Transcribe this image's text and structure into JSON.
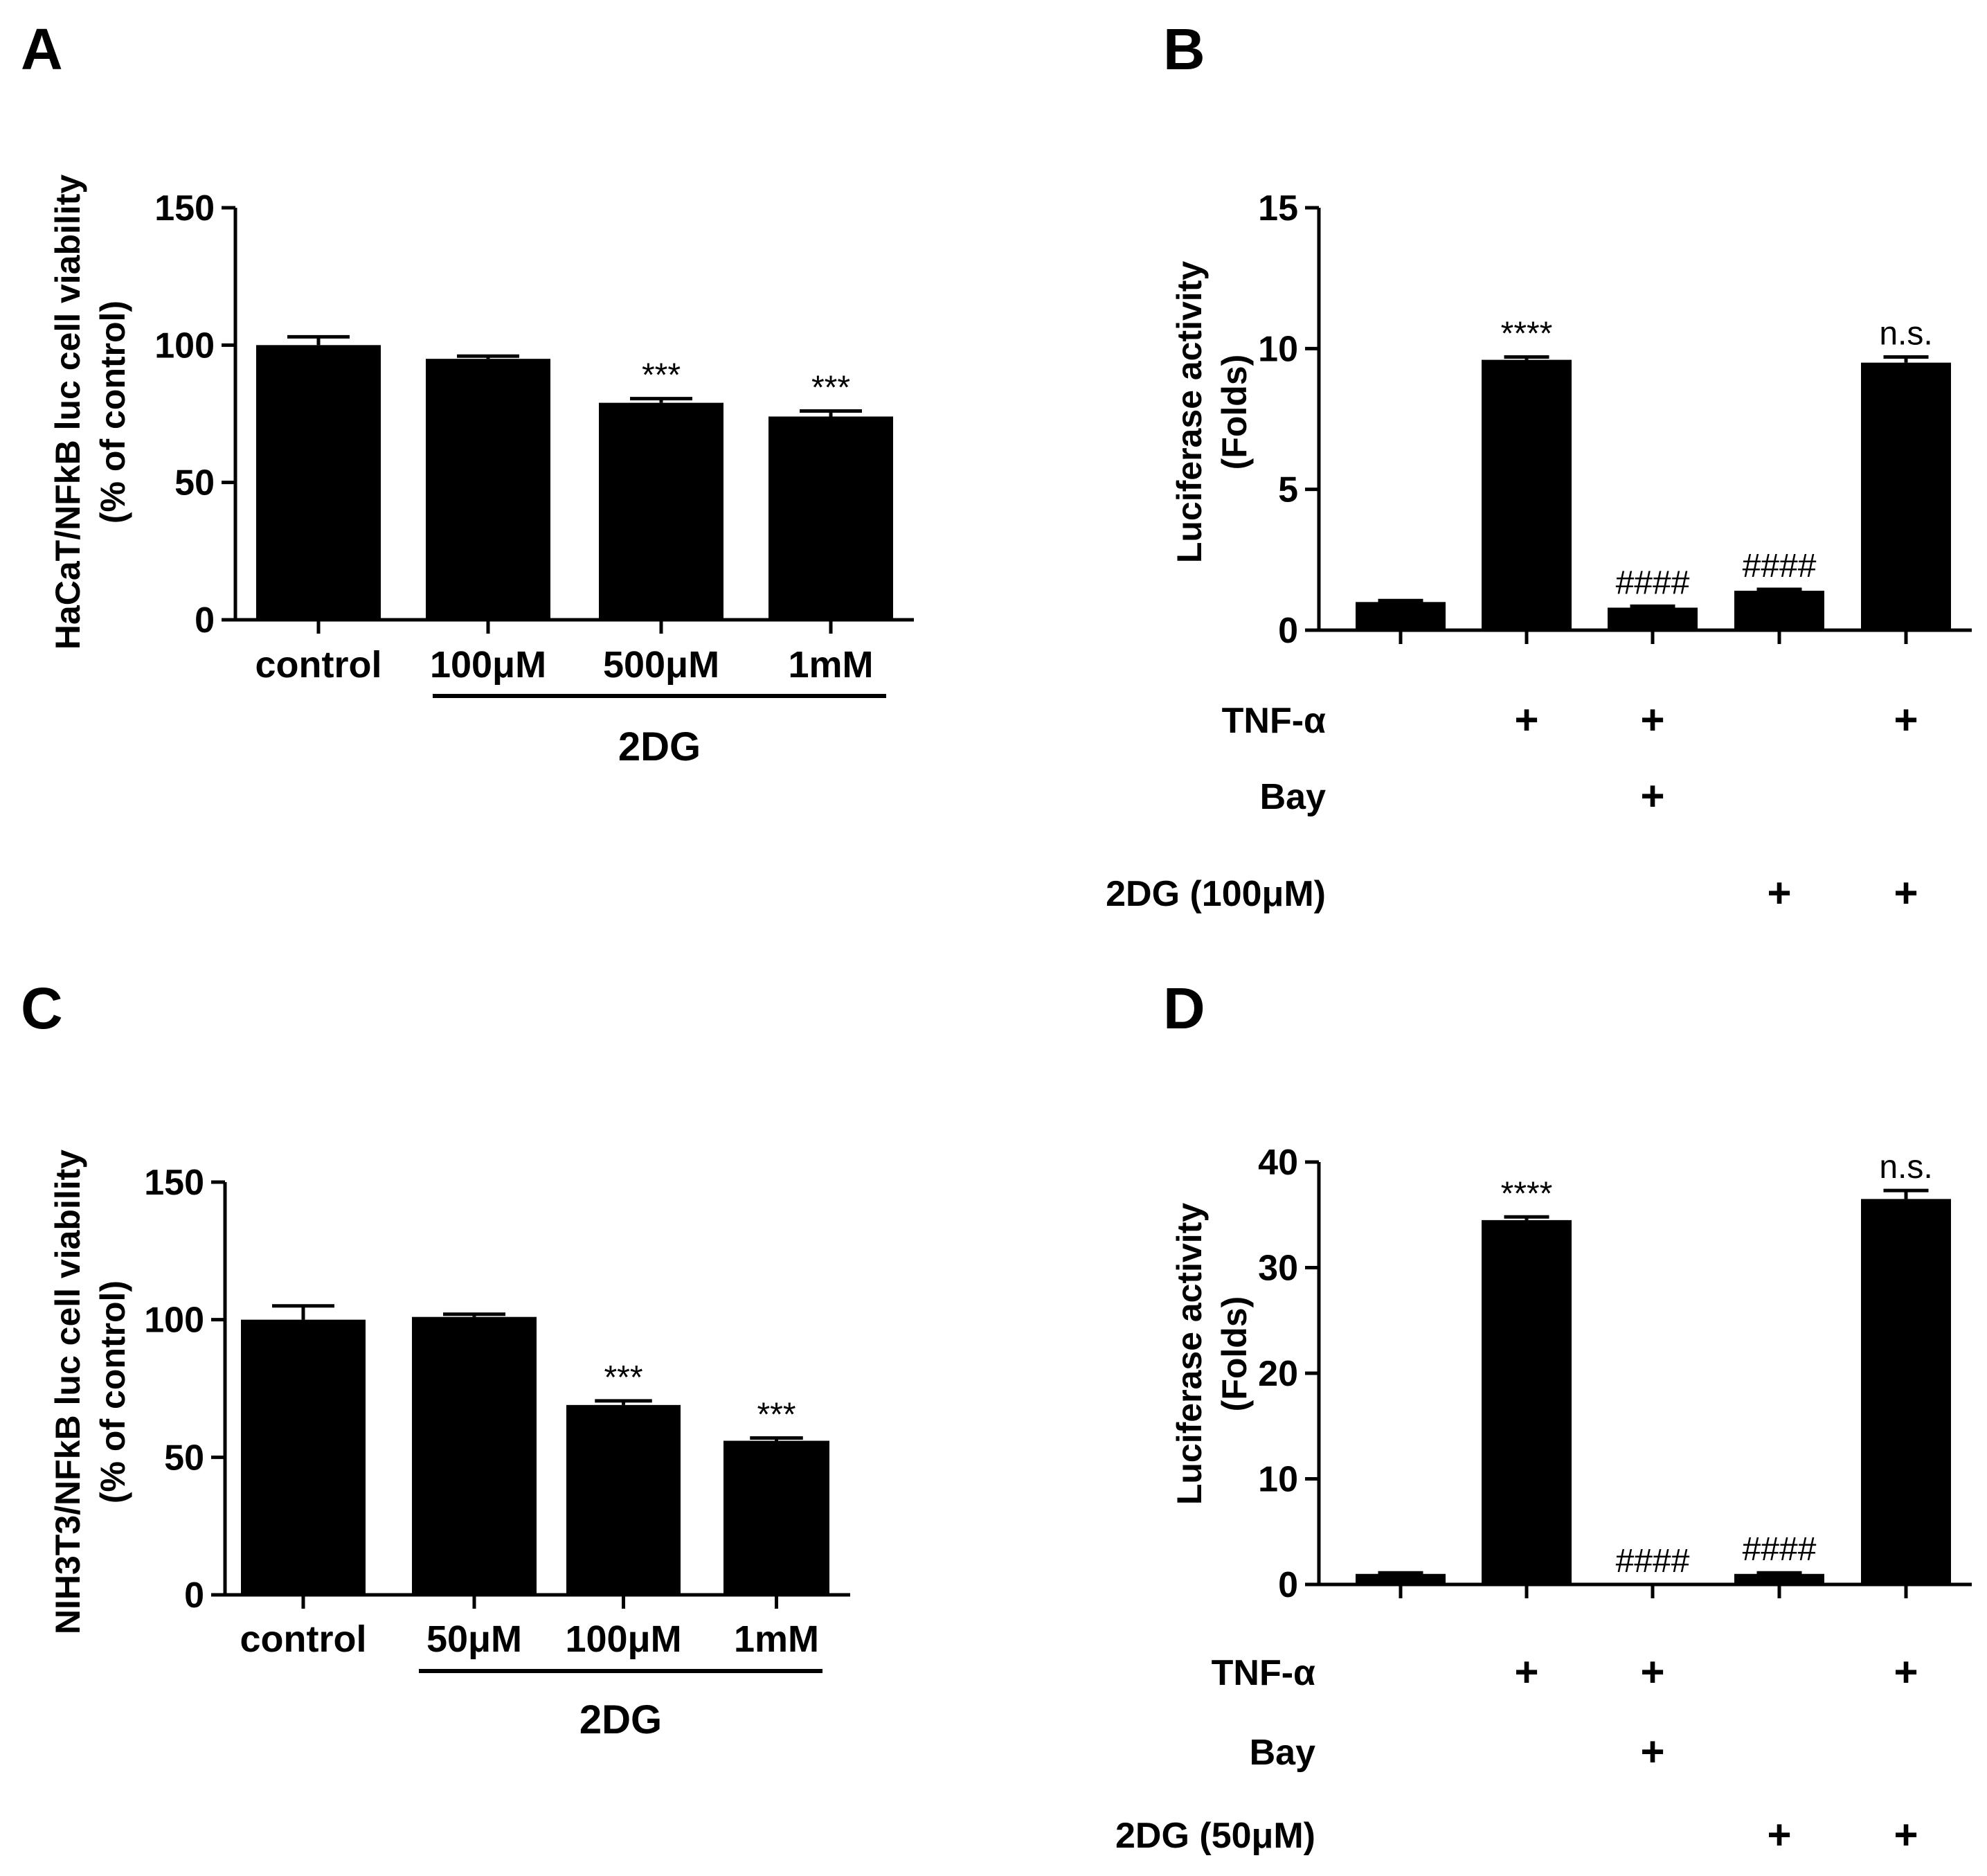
{
  "chart_data": [
    {
      "panel": "A",
      "type": "bar",
      "ylabel": [
        "HaCaT/NFkB luc cell viability",
        "(% of control)"
      ],
      "ylim": [
        0,
        150
      ],
      "yticks": [
        0,
        50,
        100,
        150
      ],
      "categories": [
        "control",
        "100μM",
        "500μM",
        "1mM"
      ],
      "values": [
        100,
        95,
        79,
        74
      ],
      "errors": [
        3,
        1,
        1.5,
        2
      ],
      "annotations": [
        "",
        "",
        "***",
        "***"
      ],
      "group_label": "2DG",
      "group_span": [
        1,
        3
      ]
    },
    {
      "panel": "B",
      "type": "bar",
      "ylabel": [
        "Luciferase activity",
        "(Folds)"
      ],
      "ylim": [
        0,
        15
      ],
      "yticks": [
        0,
        5,
        10,
        15
      ],
      "values": [
        1.0,
        9.6,
        0.8,
        1.4,
        9.5
      ],
      "errors": [
        0.05,
        0.1,
        0.05,
        0.05,
        0.2
      ],
      "annotations": [
        "",
        "****",
        "####",
        "####",
        "n.s."
      ],
      "conditions": [
        {
          "label": "TNF-α",
          "marks": [
            "",
            "+",
            "+",
            "",
            "+"
          ]
        },
        {
          "label": "Bay",
          "marks": [
            "",
            "",
            "+",
            "",
            ""
          ]
        },
        {
          "label": "2DG (100μM)",
          "marks": [
            "",
            "",
            "",
            "+",
            "+"
          ]
        }
      ]
    },
    {
      "panel": "C",
      "type": "bar",
      "ylabel": [
        "NIH3T3/NFkB luc cell viability",
        "(% of control)"
      ],
      "ylim": [
        0,
        150
      ],
      "yticks": [
        0,
        50,
        100,
        150
      ],
      "categories": [
        "control",
        "50μM",
        "100μM",
        "1mM"
      ],
      "values": [
        100,
        101,
        69,
        56
      ],
      "errors": [
        5,
        1,
        1.5,
        1
      ],
      "annotations": [
        "",
        "",
        "***",
        "***"
      ],
      "group_label": "2DG",
      "group_span": [
        1,
        3
      ]
    },
    {
      "panel": "D",
      "type": "bar",
      "ylabel": [
        "Luciferase activity",
        "(Folds)"
      ],
      "ylim": [
        0,
        40
      ],
      "yticks": [
        0,
        10,
        20,
        30,
        40
      ],
      "values": [
        1.0,
        34.5,
        0.0,
        1.0,
        36.5
      ],
      "errors": [
        0.1,
        0.3,
        0.0,
        0.1,
        0.8
      ],
      "annotations": [
        "",
        "****",
        "####",
        "####",
        "n.s."
      ],
      "conditions": [
        {
          "label": "TNF-α",
          "marks": [
            "",
            "+",
            "+",
            "",
            "+"
          ]
        },
        {
          "label": "Bay",
          "marks": [
            "",
            "",
            "+",
            "",
            ""
          ]
        },
        {
          "label": "2DG (50μM)",
          "marks": [
            "",
            "",
            "",
            "+",
            "+"
          ]
        }
      ]
    }
  ]
}
